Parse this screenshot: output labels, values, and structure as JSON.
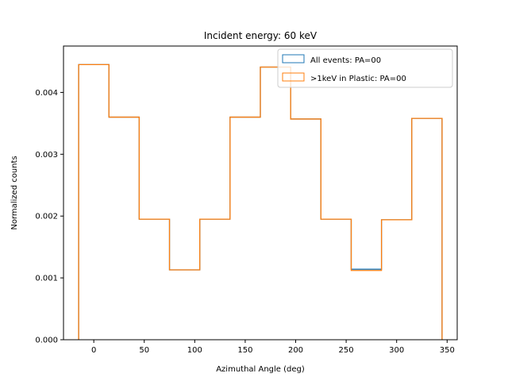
{
  "chart_data": {
    "type": "line",
    "title": "Incident energy: 60 keV",
    "xlabel": "Azimuthal Angle (deg)",
    "ylabel": "Normalized counts",
    "xlim": [
      -30,
      360
    ],
    "ylim": [
      0,
      0.00475
    ],
    "xticks": [
      0,
      50,
      100,
      150,
      200,
      250,
      300,
      350
    ],
    "xtick_labels": [
      "0",
      "50",
      "100",
      "150",
      "200",
      "250",
      "300",
      "350"
    ],
    "yticks": [
      0,
      0.001,
      0.002,
      0.003,
      0.004
    ],
    "ytick_labels": [
      "0.000",
      "0.001",
      "0.002",
      "0.003",
      "0.004"
    ],
    "grid": false,
    "legend_position": "top-right",
    "bin_edges": [
      -15,
      15,
      45,
      75,
      105,
      135,
      165,
      195,
      225,
      255,
      285,
      315,
      345
    ],
    "series": [
      {
        "name": "All events: PA=00",
        "color": "#1f77b4",
        "values": [
          0.00445,
          0.0036,
          0.00195,
          0.00113,
          0.00195,
          0.0036,
          0.00441,
          0.00357,
          0.00195,
          0.00114,
          0.00194,
          0.00358
        ]
      },
      {
        "name": ">1keV in Plastic: PA=00",
        "color": "#ff7f0e",
        "values": [
          0.00445,
          0.0036,
          0.00195,
          0.00113,
          0.00195,
          0.0036,
          0.00441,
          0.00357,
          0.00195,
          0.00112,
          0.00194,
          0.00358
        ]
      }
    ]
  }
}
